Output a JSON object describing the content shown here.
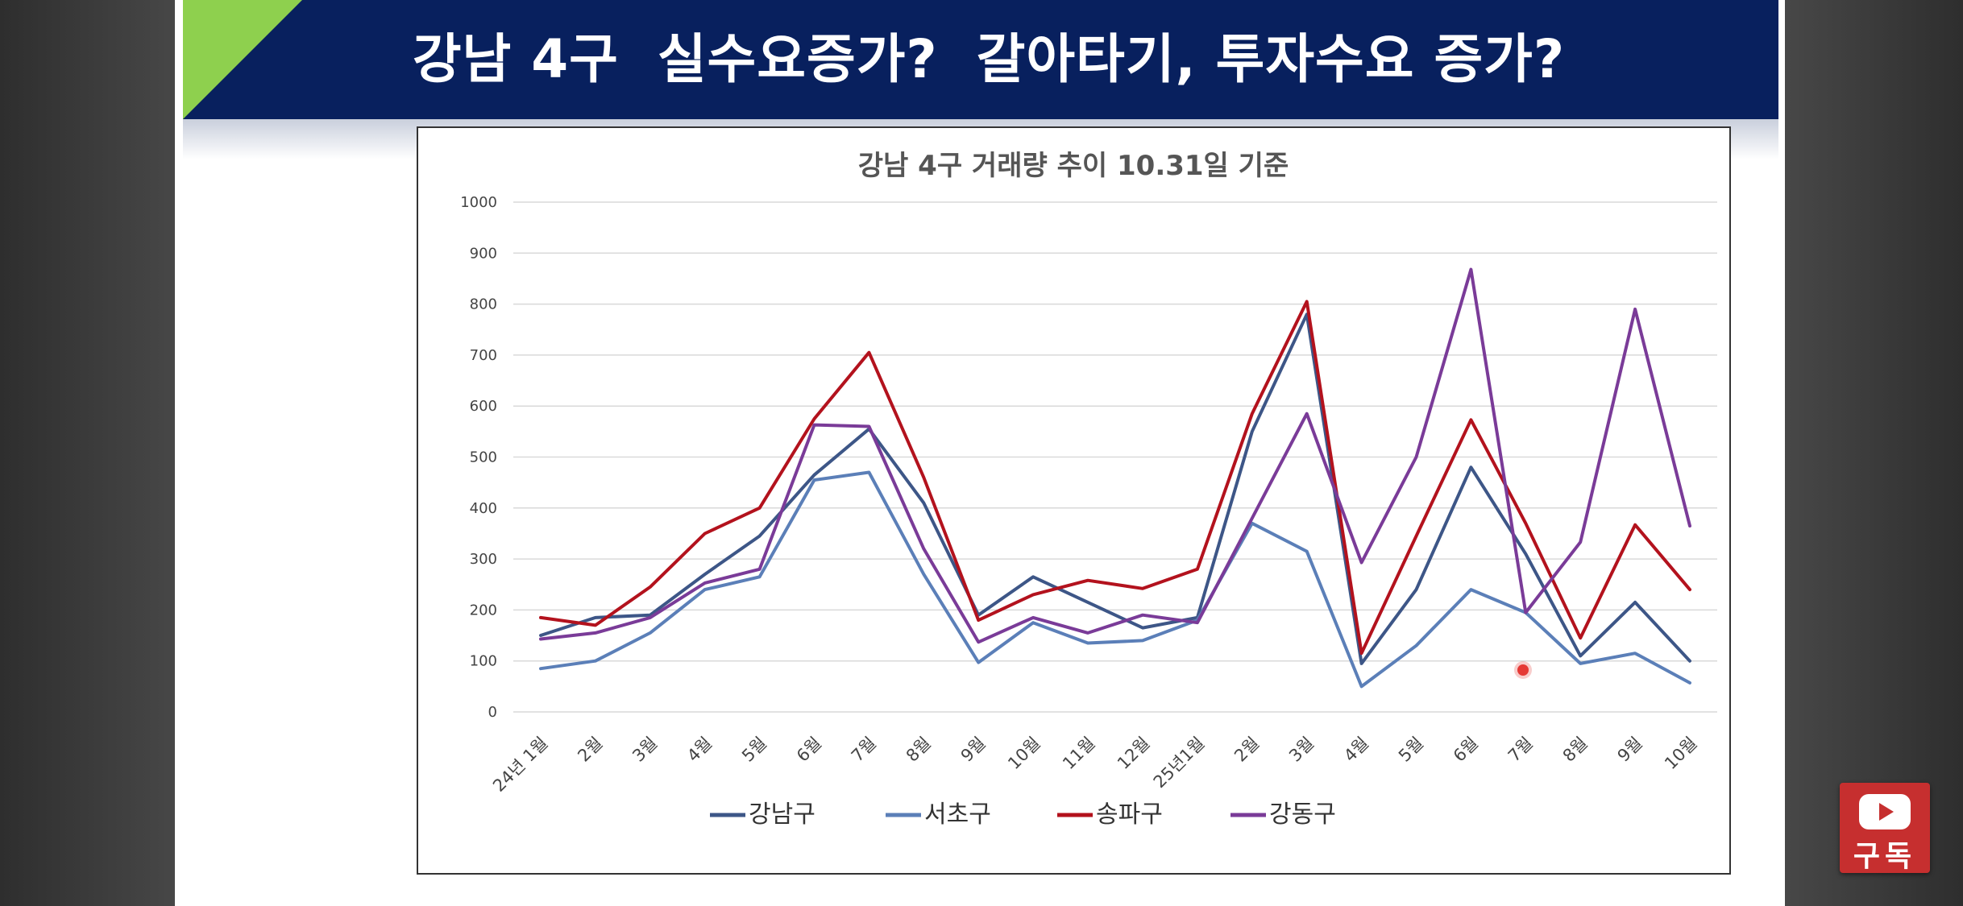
{
  "slide": {
    "title": "강남 4구  실수요증가?  갈아타기, 투자수요 증가?"
  },
  "subscribe": {
    "label": "구독",
    "icon": "youtube-play-icon"
  },
  "colors": {
    "title_bar": "#08205e",
    "title_accent": "#8ed04e",
    "gangnam": "#3d5687",
    "seocho": "#5b7fb8",
    "songpa": "#b3121d",
    "gangdong": "#7a3b98"
  },
  "chart_data": {
    "type": "line",
    "title": "강남 4구 거래량 추이 10.31일 기준",
    "xlabel": "",
    "ylabel": "",
    "ylim": [
      0,
      1000
    ],
    "yticks": [
      0,
      100,
      200,
      300,
      400,
      500,
      600,
      700,
      800,
      900,
      1000
    ],
    "grid": true,
    "legend": "bottom",
    "categories": [
      "24년 1월",
      "2월",
      "3월",
      "4월",
      "5월",
      "6월",
      "7월",
      "8월",
      "9월",
      "10월",
      "11월",
      "12월",
      "25년1월",
      "2월",
      "3월",
      "4월",
      "5월",
      "6월",
      "7월",
      "8월",
      "9월",
      "10월"
    ],
    "series": [
      {
        "name": "강남구",
        "color": "#3d5687",
        "values": [
          150,
          185,
          190,
          270,
          345,
          465,
          555,
          410,
          190,
          265,
          215,
          165,
          185,
          550,
          780,
          95,
          240,
          480,
          310,
          110,
          215,
          100
        ]
      },
      {
        "name": "서초구",
        "color": "#5b7fb8",
        "values": [
          85,
          100,
          155,
          240,
          265,
          455,
          470,
          270,
          97,
          175,
          135,
          140,
          180,
          370,
          315,
          50,
          130,
          240,
          195,
          95,
          115,
          57
        ]
      },
      {
        "name": "송파구",
        "color": "#b3121d",
        "values": [
          185,
          170,
          245,
          350,
          400,
          575,
          705,
          460,
          180,
          230,
          258,
          242,
          280,
          585,
          805,
          115,
          345,
          573,
          370,
          145,
          367,
          240
        ]
      },
      {
        "name": "강동구",
        "color": "#7a3b98",
        "values": [
          143,
          155,
          185,
          253,
          280,
          563,
          560,
          320,
          137,
          185,
          155,
          190,
          175,
          380,
          585,
          293,
          500,
          868,
          195,
          333,
          790,
          365
        ]
      }
    ]
  }
}
